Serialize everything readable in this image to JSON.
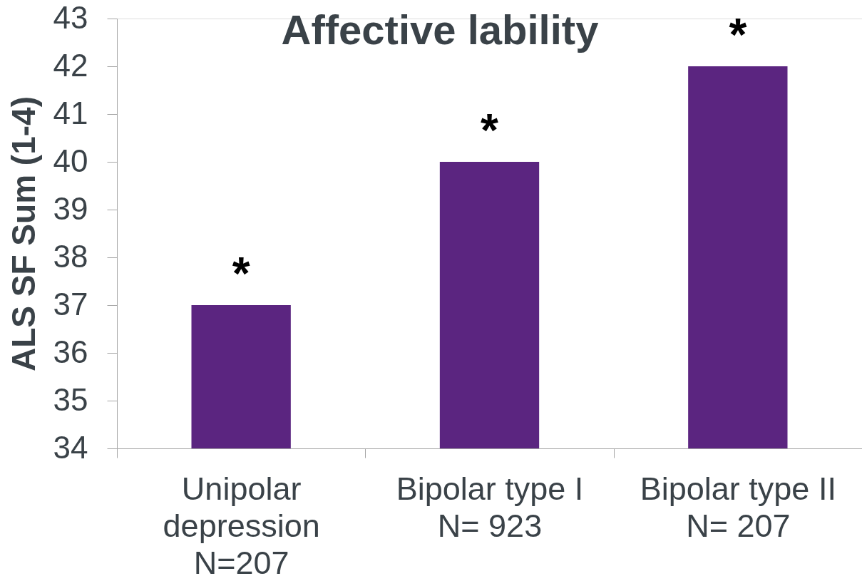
{
  "chart_data": {
    "type": "bar",
    "title": "Affective lability",
    "ylabel": "ALS SF Sum (1-4)",
    "categories": [
      "Unipolar\ndepression\nN=207",
      "Bipolar type I\nN= 923",
      "Bipolar type II\nN= 207"
    ],
    "values": [
      37,
      40,
      42
    ],
    "color": "#5b2580",
    "ylim": [
      34,
      43
    ],
    "yticks": [
      34,
      35,
      36,
      37,
      38,
      39,
      40,
      41,
      42,
      43
    ],
    "grid": false,
    "annotations": [
      {
        "text": "*",
        "x": "Unipolar\ndepression\nN=207",
        "y": 37
      },
      {
        "text": "*",
        "x": "Bipolar type I\nN= 923",
        "y": 40
      },
      {
        "text": "*",
        "x": "Bipolar type II\nN= 207",
        "y": 42
      }
    ]
  }
}
